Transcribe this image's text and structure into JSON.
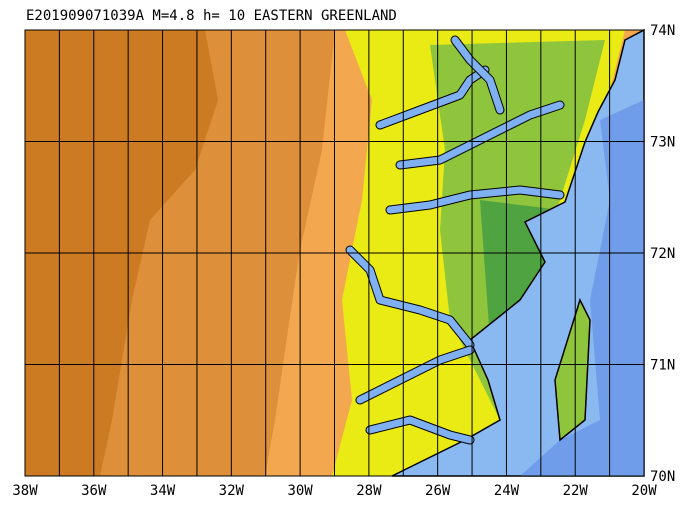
{
  "title": "E201909071039A M=4.8 h= 10 EASTERN GREENLAND",
  "map": {
    "lat_labels": [
      "74N",
      "73N",
      "72N",
      "71N",
      "70N"
    ],
    "lon_labels": [
      "38W",
      "36W",
      "34W",
      "32W",
      "30W",
      "28W",
      "26W",
      "24W",
      "22W",
      "20W"
    ]
  }
}
